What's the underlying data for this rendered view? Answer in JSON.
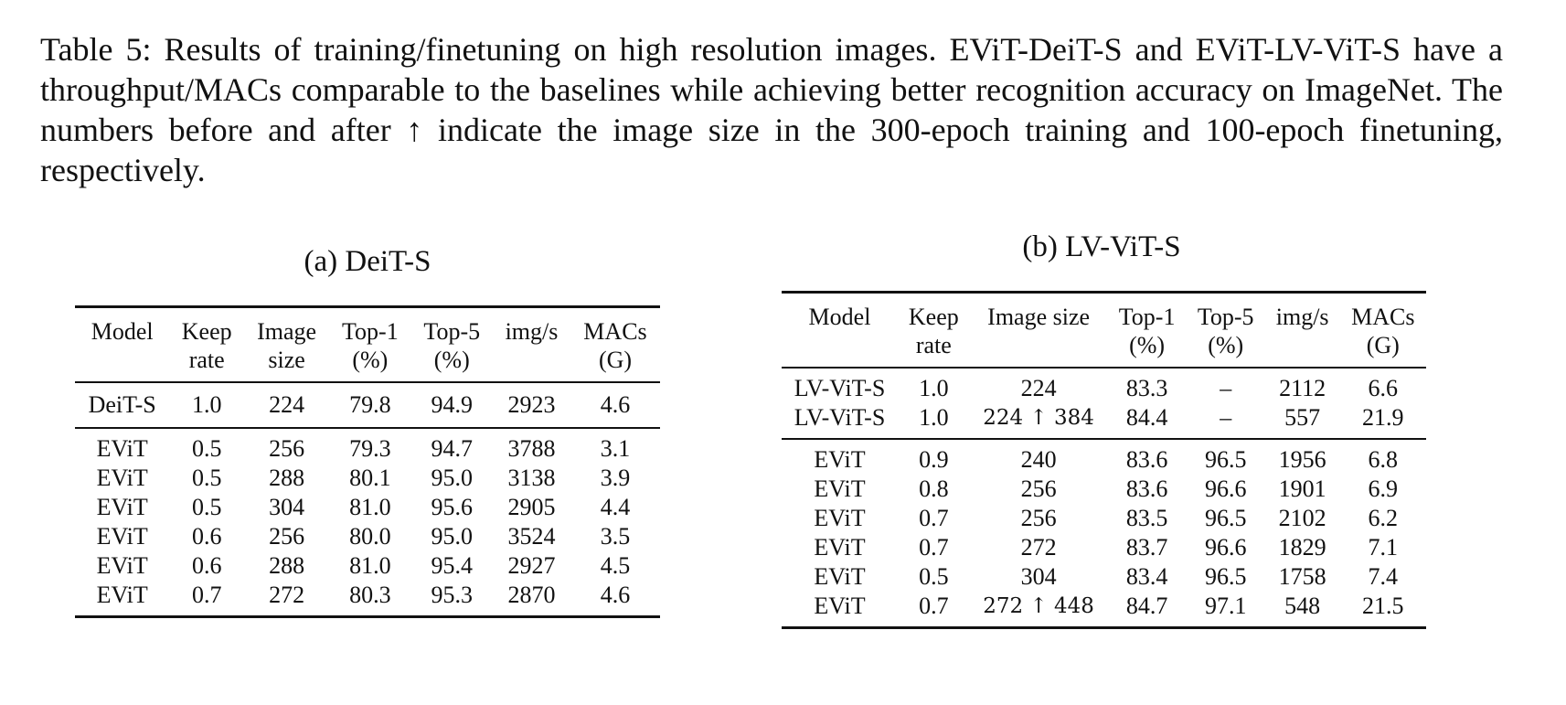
{
  "caption": "Table 5: Results of training/finetuning on high resolution images. EViT-DeiT-S and EViT-LV-ViT-S have a throughput/MACs comparable to the baselines while achieving better recognition accuracy on ImageNet. The numbers before and after ↑ indicate the image size in the 300-epoch training and 100-epoch finetuning, respectively.",
  "table_a": {
    "title": "(a) DeiT-S",
    "headers": [
      [
        "Model",
        ""
      ],
      [
        "Keep",
        "rate"
      ],
      [
        "Image",
        "size"
      ],
      [
        "Top-1",
        "(%)"
      ],
      [
        "Top-5",
        "(%)"
      ],
      [
        "img/s",
        ""
      ],
      [
        "MACs",
        "(G)"
      ]
    ],
    "baseline_rows": [
      [
        "DeiT-S",
        "1.0",
        "224",
        "79.8",
        "94.9",
        "2923",
        "4.6"
      ]
    ],
    "evit_rows": [
      [
        "EViT",
        "0.5",
        "256",
        "79.3",
        "94.7",
        "3788",
        "3.1"
      ],
      [
        "EViT",
        "0.5",
        "288",
        "80.1",
        "95.0",
        "3138",
        "3.9"
      ],
      [
        "EViT",
        "0.5",
        "304",
        "81.0",
        "95.6",
        "2905",
        "4.4"
      ],
      [
        "EViT",
        "0.6",
        "256",
        "80.0",
        "95.0",
        "3524",
        "3.5"
      ],
      [
        "EViT",
        "0.6",
        "288",
        "81.0",
        "95.4",
        "2927",
        "4.5"
      ],
      [
        "EViT",
        "0.7",
        "272",
        "80.3",
        "95.3",
        "2870",
        "4.6"
      ]
    ]
  },
  "table_b": {
    "title": "(b) LV-ViT-S",
    "headers": [
      [
        "Model",
        ""
      ],
      [
        "Keep",
        "rate"
      ],
      [
        "Image size",
        ""
      ],
      [
        "Top-1",
        "(%)"
      ],
      [
        "Top-5",
        "(%)"
      ],
      [
        "img/s",
        ""
      ],
      [
        "MACs",
        "(G)"
      ]
    ],
    "baseline_rows": [
      [
        "LV-ViT-S",
        "1.0",
        "224",
        "83.3",
        "–",
        "2112",
        "6.6"
      ],
      [
        "LV-ViT-S",
        "1.0",
        "224 ↑ 384",
        "84.4",
        "–",
        "557",
        "21.9"
      ]
    ],
    "evit_rows": [
      [
        "EViT",
        "0.9",
        "240",
        "83.6",
        "96.5",
        "1956",
        "6.8"
      ],
      [
        "EViT",
        "0.8",
        "256",
        "83.6",
        "96.6",
        "1901",
        "6.9"
      ],
      [
        "EViT",
        "0.7",
        "256",
        "83.5",
        "96.5",
        "2102",
        "6.2"
      ],
      [
        "EViT",
        "0.7",
        "272",
        "83.7",
        "96.6",
        "1829",
        "7.1"
      ],
      [
        "EViT",
        "0.5",
        "304",
        "83.4",
        "96.5",
        "1758",
        "7.4"
      ],
      [
        "EViT",
        "0.7",
        "272 ↑ 448",
        "84.7",
        "97.1",
        "548",
        "21.5"
      ]
    ]
  }
}
